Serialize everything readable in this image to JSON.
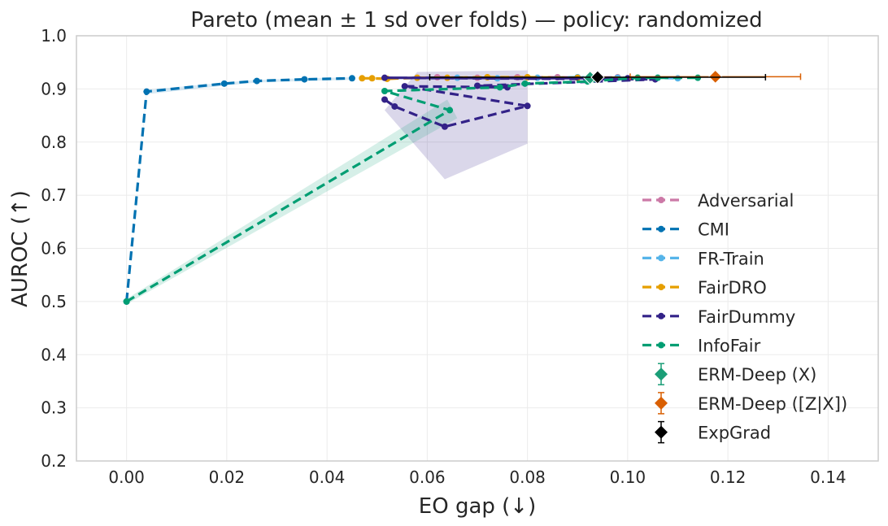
{
  "chart_data": {
    "type": "line",
    "title": "Pareto (mean ± 1 sd over folds) — policy: randomized",
    "xlabel": "EO gap (↓)",
    "ylabel": "AUROC (↑)",
    "xlim": [
      -0.01,
      0.15
    ],
    "ylim": [
      0.2,
      1.0
    ],
    "xticks": [
      0.0,
      0.02,
      0.04,
      0.06,
      0.08,
      0.1,
      0.12,
      0.14
    ],
    "xtick_labels": [
      "0.00",
      "0.02",
      "0.04",
      "0.06",
      "0.08",
      "0.10",
      "0.12",
      "0.14"
    ],
    "yticks": [
      0.2,
      0.3,
      0.4,
      0.5,
      0.6,
      0.7,
      0.8,
      0.9,
      1.0
    ],
    "ytick_labels": [
      "0.2",
      "0.3",
      "0.4",
      "0.5",
      "0.6",
      "0.7",
      "0.8",
      "0.9",
      "1.0"
    ],
    "grid": true,
    "legend_position": "lower-right",
    "series": [
      {
        "name": "Adversarial",
        "color": "#cc79a7",
        "x": [
          0.062,
          0.07,
          0.078,
          0.086,
          0.092,
          0.098
        ],
        "y": [
          0.922,
          0.921,
          0.922,
          0.922,
          0.921,
          0.922
        ]
      },
      {
        "name": "CMI",
        "color": "#0072b2",
        "x": [
          0.0,
          0.004,
          0.0195,
          0.026,
          0.0355,
          0.045
        ],
        "y": [
          0.5,
          0.895,
          0.91,
          0.915,
          0.918,
          0.92
        ],
        "band_upper": [
          0.5,
          0.898,
          0.912,
          0.917,
          0.92,
          0.922
        ],
        "band_lower": [
          0.5,
          0.89,
          0.906,
          0.912,
          0.915,
          0.917
        ]
      },
      {
        "name": "FR-Train",
        "color": "#56b4e9",
        "x": [
          0.066,
          0.074,
          0.082,
          0.09,
          0.098,
          0.106,
          0.11
        ],
        "y": [
          0.921,
          0.92,
          0.921,
          0.922,
          0.921,
          0.921,
          0.92
        ]
      },
      {
        "name": "FairDRO",
        "color": "#e69f00",
        "x": [
          0.047,
          0.049,
          0.052,
          0.058,
          0.064,
          0.072,
          0.08,
          0.09,
          0.102
        ],
        "y": [
          0.92,
          0.92,
          0.919,
          0.921,
          0.921,
          0.922,
          0.922,
          0.921,
          0.921
        ]
      },
      {
        "name": "FairDummy",
        "color": "#332288",
        "x": [
          0.0515,
          0.0535,
          0.0635,
          0.08,
          0.0555,
          0.076,
          0.07,
          0.1055,
          0.0515,
          0.1
        ],
        "y": [
          0.88,
          0.867,
          0.829,
          0.868,
          0.905,
          0.903,
          0.906,
          0.918,
          0.921,
          0.92
        ],
        "band": [
          [
            0.0515,
            0.86
          ],
          [
            0.0635,
            0.73
          ],
          [
            0.08,
            0.797
          ],
          [
            0.08,
            0.935
          ],
          [
            0.058,
            0.932
          ],
          [
            0.0515,
            0.86
          ]
        ]
      },
      {
        "name": "InfoFair",
        "color": "#009e73",
        "x": [
          0.0,
          0.0645,
          0.0515,
          0.0745,
          0.0795,
          0.092,
          0.102,
          0.106,
          0.114
        ],
        "y": [
          0.5,
          0.86,
          0.896,
          0.903,
          0.91,
          0.914,
          0.921,
          0.921,
          0.921
        ],
        "band_polygon": [
          [
            0.0,
            0.505
          ],
          [
            0.064,
            0.88
          ],
          [
            0.066,
            0.845
          ],
          [
            0.0,
            0.495
          ]
        ]
      }
    ],
    "points": [
      {
        "name": "ERM-Deep (X)",
        "color": "#1b9e77",
        "x": 0.0925,
        "y": 0.921,
        "xerr": 0.0,
        "yerr": 0.003
      },
      {
        "name": "ERM-Deep ([Z|X])",
        "color": "#d95f02",
        "x": 0.1175,
        "y": 0.923,
        "xerr": 0.017,
        "yerr": 0.003
      },
      {
        "name": "ExpGrad",
        "color": "#000000",
        "x": 0.094,
        "y": 0.922,
        "xerr": 0.0335,
        "yerr": 0.003
      }
    ]
  }
}
